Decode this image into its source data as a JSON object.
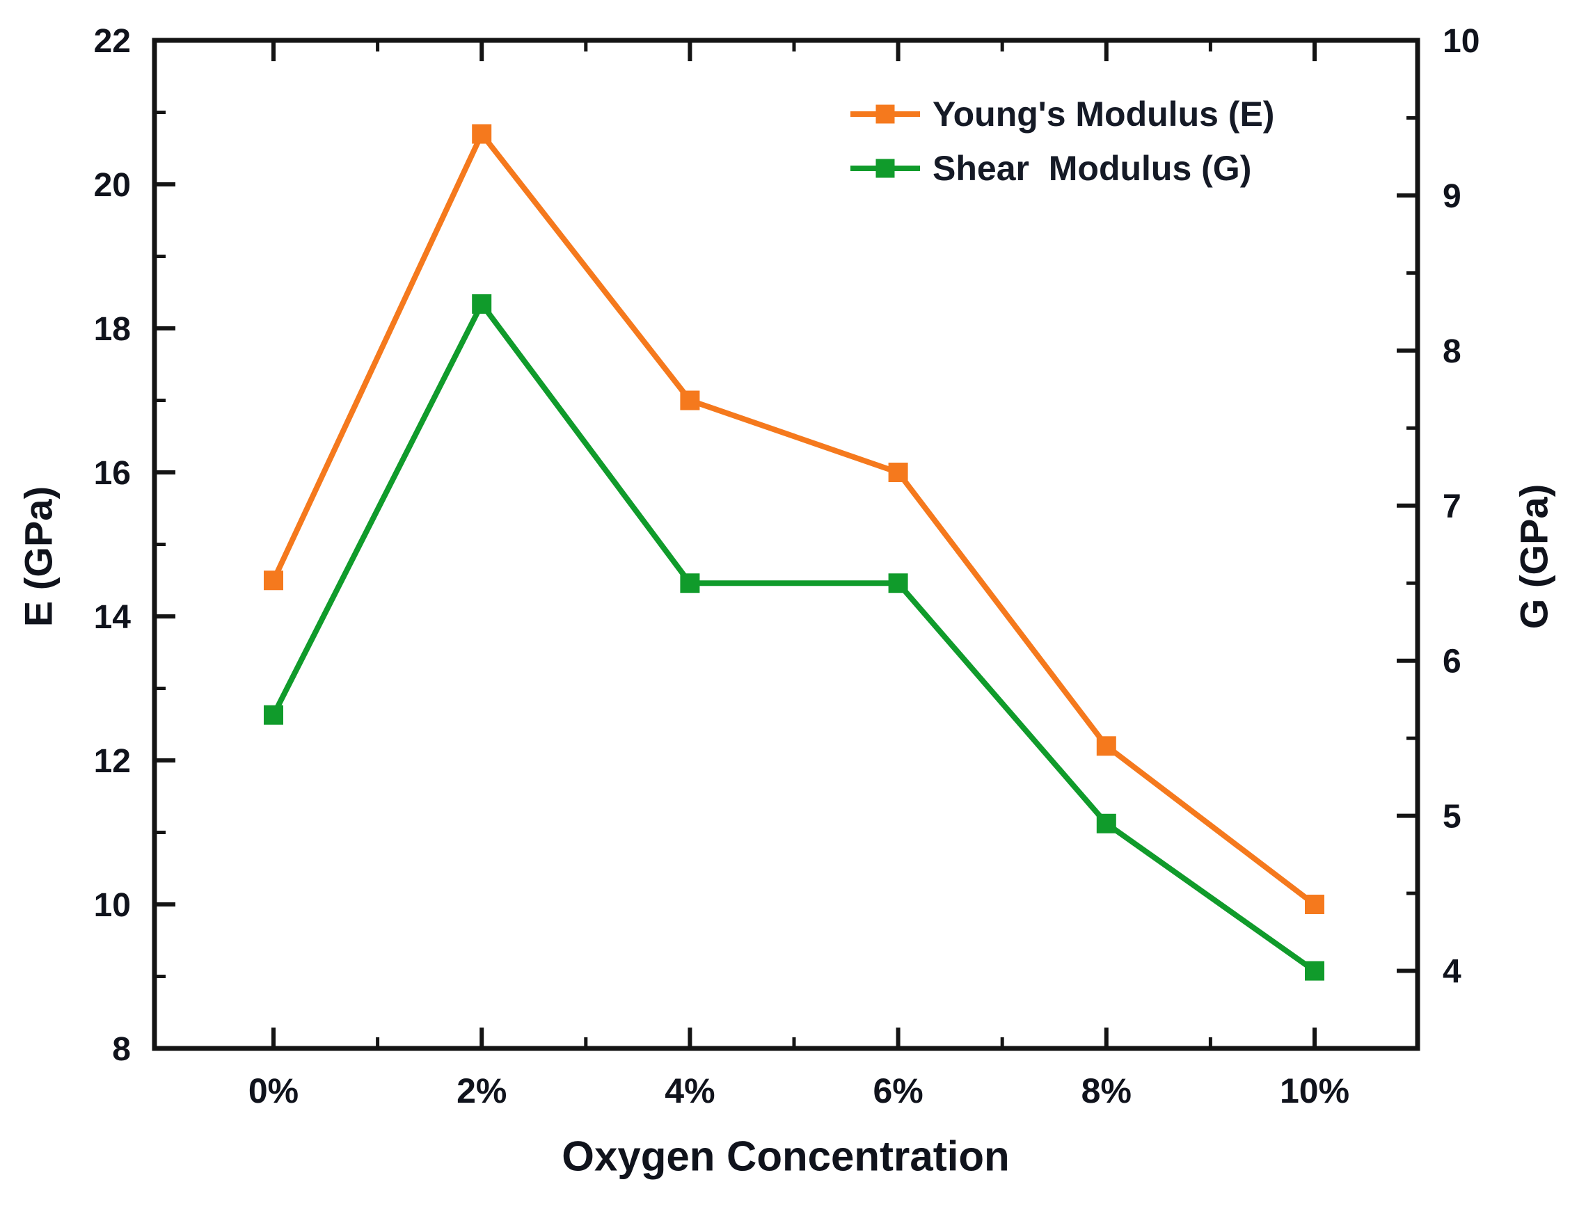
{
  "chart_data": {
    "type": "line",
    "title": "",
    "xlabel": "Oxygen Concentration",
    "categories": [
      "0%",
      "2%",
      "4%",
      "6%",
      "8%",
      "10%"
    ],
    "series": [
      {
        "name": "Young's Modulus (E)",
        "axis": "left",
        "color": "#F5791D",
        "marker": "square",
        "values": [
          14.5,
          20.7,
          17.0,
          16.0,
          12.2,
          10.0
        ]
      },
      {
        "name": "Shear  Modulus (G)",
        "axis": "right",
        "color": "#109B2B",
        "marker": "square",
        "values": [
          5.65,
          8.3,
          6.5,
          6.5,
          4.95,
          4.0
        ]
      }
    ],
    "axis_left": {
      "label": "E (GPa)",
      "min": 8,
      "max": 22,
      "major_ticks": [
        8,
        10,
        12,
        14,
        16,
        18,
        20,
        22
      ],
      "tick_labels": [
        "8",
        "10",
        "12",
        "14",
        "16",
        "18",
        "20",
        "22"
      ],
      "minor_ticks": [
        9,
        11,
        13,
        15,
        17,
        19,
        21
      ]
    },
    "axis_right": {
      "label": "G (GPa)",
      "min": 3.5,
      "max": 10,
      "major_ticks": [
        4,
        5,
        6,
        7,
        8,
        9,
        10
      ],
      "tick_labels": [
        "4",
        "5",
        "6",
        "7",
        "8",
        "9",
        "10"
      ],
      "minor_ticks": [
        4.5,
        5.5,
        6.5,
        7.5,
        8.5,
        9.5
      ]
    },
    "x_axis": {
      "minor_positions": [
        1,
        3,
        5,
        7,
        9
      ]
    },
    "legend": {
      "position": "top-right",
      "frame": false
    },
    "grid": false,
    "colors": {
      "frame": "#141414",
      "tick_text": "#10131c"
    }
  }
}
